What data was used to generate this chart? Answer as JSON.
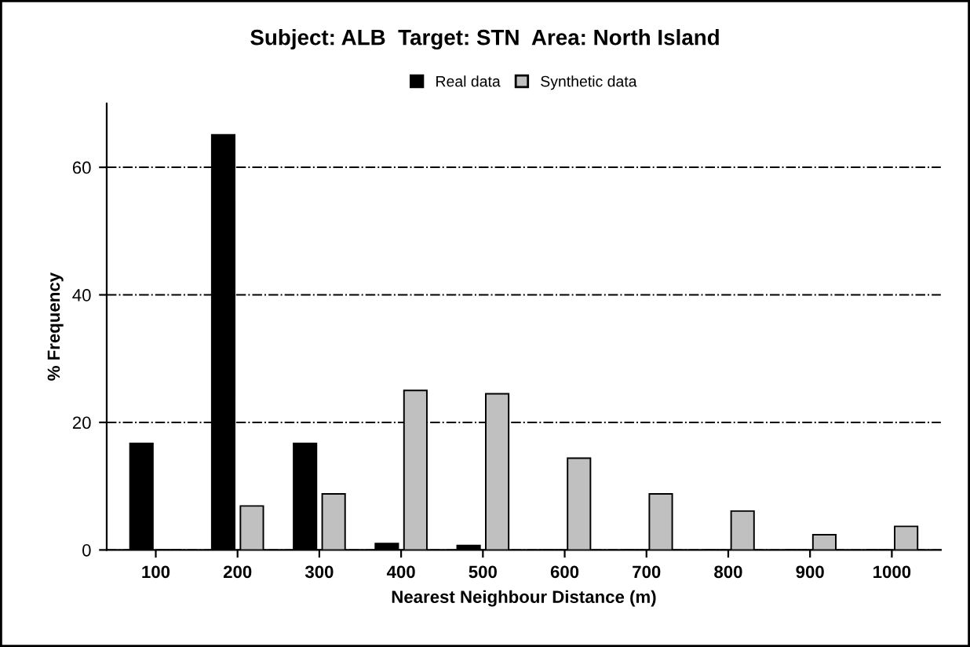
{
  "chart_data": {
    "type": "bar",
    "title": "Subject: ALB  Target: STN  Area: North Island",
    "xlabel": "Nearest Neighbour Distance (m)",
    "ylabel": "% Frequency",
    "categories": [
      "100",
      "200",
      "300",
      "400",
      "500",
      "600",
      "700",
      "800",
      "900",
      "1000"
    ],
    "series": [
      {
        "name": "Real data",
        "color": "#000000",
        "values": [
          16.7,
          65.1,
          16.7,
          1.0,
          0.7,
          0,
          0,
          0,
          0,
          0
        ]
      },
      {
        "name": "Synthetic data",
        "color": "#c0c0c0",
        "values": [
          0,
          6.9,
          8.8,
          25.0,
          24.5,
          14.4,
          8.8,
          6.1,
          2.4,
          3.7
        ]
      }
    ],
    "ylim": [
      0,
      70
    ],
    "yticks": [
      0,
      20,
      40,
      60
    ],
    "grid": "y",
    "legend": "top"
  }
}
